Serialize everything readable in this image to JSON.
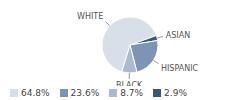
{
  "chart_data": {
    "type": "pie",
    "categories": [
      "WHITE",
      "ASIAN",
      "HISPANIC",
      "BLACK"
    ],
    "values": [
      64.8,
      2.9,
      23.6,
      8.7
    ],
    "value_labels": [
      "64.8%",
      "2.9%",
      "23.6%",
      "8.7%"
    ],
    "colors": [
      "#d9dfe8",
      "#345878",
      "#7d94b6",
      "#abbad0"
    ]
  }
}
